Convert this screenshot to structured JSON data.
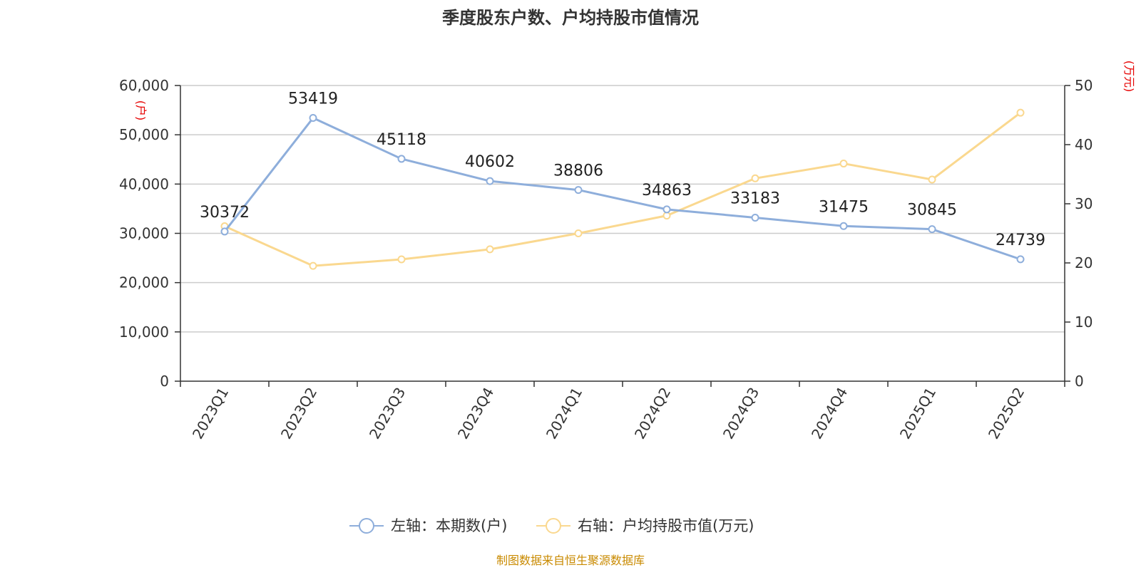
{
  "chart_data": {
    "type": "line",
    "title": "季度股东户数、户均持股市值情况",
    "categories": [
      "2023Q1",
      "2023Q2",
      "2023Q3",
      "2023Q4",
      "2024Q1",
      "2024Q2",
      "2024Q3",
      "2024Q4",
      "2025Q1",
      "2025Q2"
    ],
    "left_axis": {
      "unit": "(户)",
      "ylim": [
        0,
        60000
      ],
      "ticks": [
        "0",
        "10,000",
        "20,000",
        "30,000",
        "40,000",
        "50,000",
        "60,000"
      ],
      "tick_values": [
        0,
        10000,
        20000,
        30000,
        40000,
        50000,
        60000
      ]
    },
    "right_axis": {
      "unit": "(万元)",
      "ylim": [
        0,
        50
      ],
      "ticks": [
        "0",
        "10",
        "20",
        "30",
        "40",
        "50"
      ],
      "tick_values": [
        0,
        10,
        20,
        30,
        40,
        50
      ]
    },
    "series": [
      {
        "name": "左轴：本期数(户)",
        "axis": "left",
        "color": "#8eaedb",
        "values": [
          30372,
          53419,
          45118,
          40602,
          38806,
          34863,
          33183,
          31475,
          30845,
          24739
        ],
        "labels": [
          "30372",
          "53419",
          "45118",
          "40602",
          "38806",
          "34863",
          "33183",
          "31475",
          "30845",
          "24739"
        ]
      },
      {
        "name": "右轴：户均持股市值(万元)",
        "axis": "right",
        "color": "#fad88f",
        "values": [
          26.2,
          19.5,
          20.6,
          22.3,
          25.0,
          28.0,
          34.3,
          36.8,
          34.1,
          45.4
        ]
      }
    ],
    "grid": true,
    "legend_position": "bottom-center"
  },
  "source": "制图数据来自恒生聚源数据库"
}
